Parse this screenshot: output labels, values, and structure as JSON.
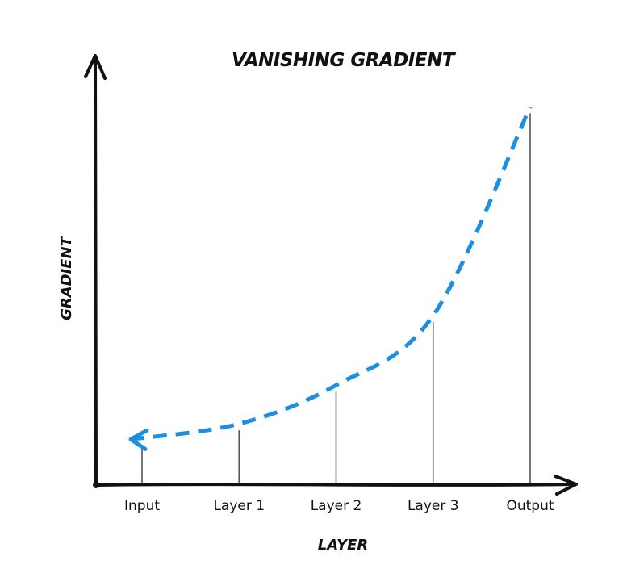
{
  "chart_data": {
    "type": "line",
    "title": "VANISHING GRADIENT",
    "xlabel": "LAYER",
    "ylabel": "GRADIENT",
    "categories": [
      "Input",
      "Layer 1",
      "Layer 2",
      "Layer 3",
      "Output"
    ],
    "values": [
      0.11,
      0.15,
      0.25,
      0.43,
      0.97
    ],
    "ylim": [
      0,
      1
    ],
    "arrow_direction": "output-to-input",
    "grid": false,
    "series_color": "#1e8fe0",
    "axis_color": "#111111",
    "stem_color": "#555555"
  }
}
